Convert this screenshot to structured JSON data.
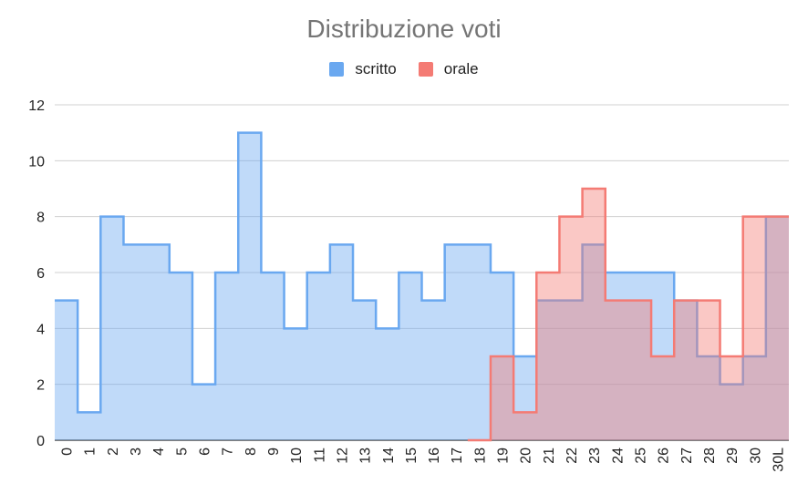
{
  "chart_data": {
    "type": "area",
    "title": "Distribuzione voti",
    "xlabel": "",
    "ylabel": "",
    "categories": [
      "0",
      "1",
      "2",
      "3",
      "4",
      "5",
      "6",
      "7",
      "8",
      "9",
      "10",
      "11",
      "12",
      "13",
      "14",
      "15",
      "16",
      "17",
      "18",
      "19",
      "20",
      "21",
      "22",
      "23",
      "24",
      "25",
      "26",
      "27",
      "28",
      "29",
      "30",
      "30L"
    ],
    "ylim": [
      0,
      12
    ],
    "yticks": [
      0,
      2,
      4,
      6,
      8,
      10,
      12
    ],
    "grid": true,
    "legend_position": "top",
    "step": true,
    "series": [
      {
        "name": "scritto",
        "color": "#6aa8f0",
        "values": [
          5,
          1,
          8,
          7,
          7,
          6,
          2,
          6,
          11,
          6,
          4,
          6,
          7,
          5,
          4,
          6,
          5,
          7,
          7,
          6,
          3,
          5,
          5,
          7,
          6,
          6,
          6,
          5,
          3,
          2,
          3,
          8
        ]
      },
      {
        "name": "orale",
        "color": "#f47b74",
        "values": [
          0,
          0,
          0,
          0,
          0,
          0,
          0,
          0,
          0,
          0,
          0,
          0,
          0,
          0,
          0,
          0,
          0,
          0,
          0,
          3,
          1,
          6,
          8,
          9,
          5,
          5,
          3,
          5,
          5,
          3,
          8,
          8
        ]
      }
    ]
  }
}
